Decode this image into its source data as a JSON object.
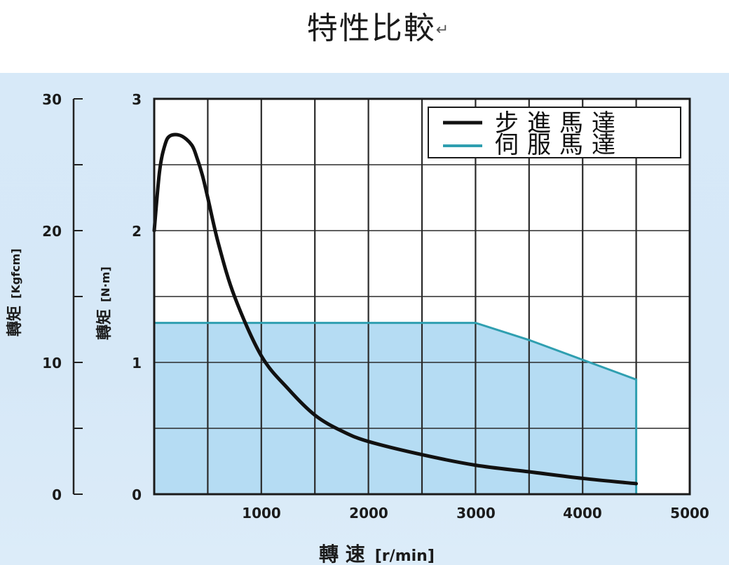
{
  "title": "特性比較",
  "title_mark": "↵",
  "chart_data": {
    "type": "line",
    "title": "特性比較",
    "xlabel": "轉速 [r/min]",
    "ylabel": "轉矩 [N·m]",
    "ylabel_secondary": "轉矩 [Kgfcm]",
    "xlim": [
      0,
      5000
    ],
    "ylim": [
      0,
      3
    ],
    "ylim_secondary": [
      0,
      30
    ],
    "x_ticks": [
      1000,
      2000,
      3000,
      4000,
      5000
    ],
    "y_ticks": [
      0,
      1,
      2,
      3
    ],
    "y_ticks_secondary": [
      0,
      10,
      20,
      30
    ],
    "grid": true,
    "grid_x_step": 500,
    "grid_y_step": 0.5,
    "legend_position": "upper right",
    "series": [
      {
        "name": "步進馬達",
        "color": "#111111",
        "style": "line",
        "x": [
          0,
          50,
          100,
          150,
          250,
          350,
          400,
          450,
          500,
          600,
          750,
          1000,
          1250,
          1500,
          1750,
          2000,
          2500,
          3000,
          3500,
          4000,
          4500
        ],
        "values": [
          2.0,
          2.45,
          2.65,
          2.72,
          2.72,
          2.65,
          2.55,
          2.42,
          2.25,
          1.9,
          1.5,
          1.05,
          0.8,
          0.6,
          0.48,
          0.4,
          0.3,
          0.22,
          0.17,
          0.12,
          0.08
        ]
      },
      {
        "name": "伺服馬達",
        "color": "#2f9fb0",
        "fill": "#b5dcf3",
        "style": "area",
        "x": [
          0,
          500,
          1000,
          1500,
          2000,
          2500,
          3000,
          3500,
          4000,
          4500,
          4500
        ],
        "values": [
          1.3,
          1.3,
          1.3,
          1.3,
          1.3,
          1.3,
          1.3,
          1.17,
          1.02,
          0.87,
          0
        ]
      }
    ]
  },
  "axes": {
    "y_secondary_labels": [
      "30",
      "20",
      "10",
      "0"
    ],
    "y_primary_labels": [
      "3",
      "2",
      "1",
      "0"
    ],
    "x_labels": [
      "1000",
      "2000",
      "3000",
      "4000",
      "5000"
    ],
    "y_secondary_title": "轉矩",
    "y_secondary_unit": "[Kgfcm]",
    "y_primary_title": "轉矩",
    "y_primary_unit": "[N·m]",
    "x_title": "轉 速",
    "x_unit": "[r/min]"
  },
  "legend": {
    "items": [
      {
        "label": "步進馬達",
        "color": "#111111"
      },
      {
        "label": "伺服馬達",
        "color": "#2f9fb0"
      }
    ]
  },
  "colors": {
    "panel_bg": "#d7e9f8",
    "plot_bg": "#ffffff",
    "grid": "#2a2a2a",
    "servo_fill": "#b5dcf3",
    "servo_line": "#2f9fb0",
    "stepper_line": "#111111"
  }
}
